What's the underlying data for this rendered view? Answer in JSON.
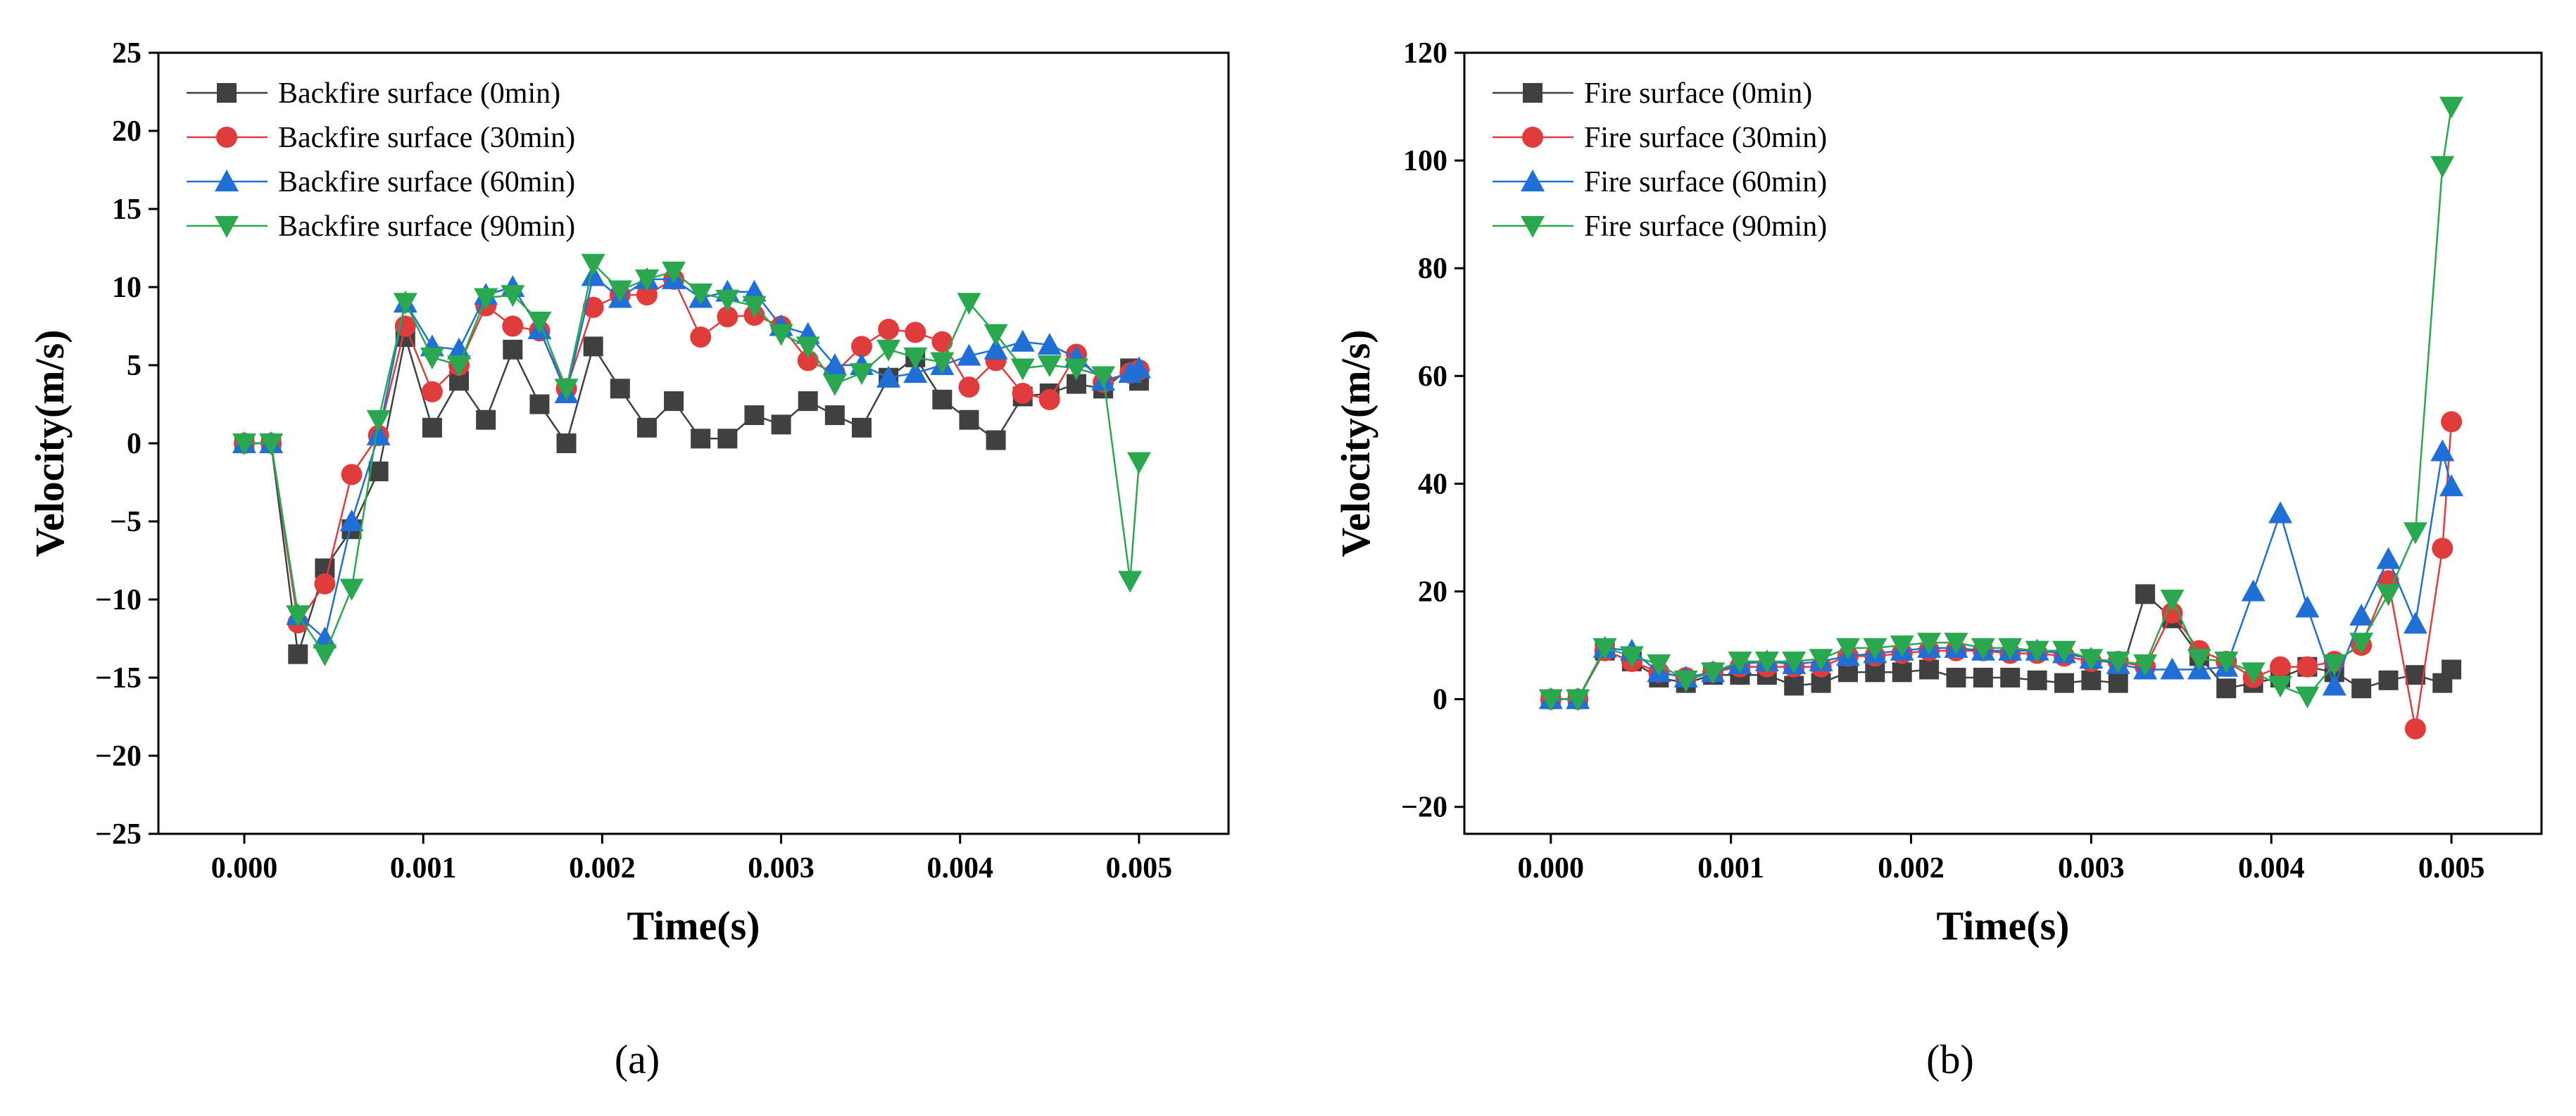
{
  "chart_data": [
    {
      "type": "line",
      "panel_label": "(a)",
      "xlabel": "Time(s)",
      "ylabel": "Velocity(m/s)",
      "xlim": [
        -0.00048,
        0.0055
      ],
      "ylim": [
        -25,
        25
      ],
      "xticks": [
        0.0,
        0.001,
        0.002,
        0.003,
        0.004,
        0.005
      ],
      "xtick_labels": [
        "0.000",
        "0.001",
        "0.002",
        "0.003",
        "0.004",
        "0.005"
      ],
      "yticks": [
        -25,
        -20,
        -15,
        -10,
        -5,
        0,
        5,
        10,
        15,
        20,
        25
      ],
      "ytick_labels": [
        "−25",
        "−20",
        "−15",
        "−10",
        "−5",
        "0",
        "5",
        "10",
        "15",
        "20",
        "25"
      ],
      "legend_position": "top-left",
      "series": [
        {
          "name": "Backfire surface (0min)",
          "color": "#404040",
          "marker": "square",
          "x": [
            0,
            0.00015,
            0.0003,
            0.00045,
            0.0006,
            0.00075,
            0.0009,
            0.00105,
            0.0012,
            0.00135,
            0.0015,
            0.00165,
            0.0018,
            0.00195,
            0.0021,
            0.00225,
            0.0024,
            0.00255,
            0.0027,
            0.00285,
            0.003,
            0.00315,
            0.0033,
            0.00345,
            0.0036,
            0.00375,
            0.0039,
            0.00405,
            0.0042,
            0.00435,
            0.0045,
            0.00465,
            0.0048,
            0.00495,
            0.005
          ],
          "y": [
            0,
            0,
            -13.5,
            -8,
            -5.5,
            -1.8,
            6.8,
            1,
            4,
            1.5,
            6,
            2.5,
            0,
            6.2,
            3.5,
            1,
            2.7,
            0.3,
            0.3,
            1.8,
            1.2,
            2.7,
            1.8,
            1,
            4.2,
            5.5,
            2.8,
            1.5,
            0.2,
            3,
            3.2,
            3.8,
            3.5,
            4.8,
            4
          ]
        },
        {
          "name": "Backfire surface (30min)",
          "color": "#e03c3c",
          "marker": "circle",
          "x": [
            0,
            0.00015,
            0.0003,
            0.00045,
            0.0006,
            0.00075,
            0.0009,
            0.00105,
            0.0012,
            0.00135,
            0.0015,
            0.00165,
            0.0018,
            0.00195,
            0.0021,
            0.00225,
            0.0024,
            0.00255,
            0.0027,
            0.00285,
            0.003,
            0.00315,
            0.0033,
            0.00345,
            0.0036,
            0.00375,
            0.0039,
            0.00405,
            0.0042,
            0.00435,
            0.0045,
            0.00465,
            0.0048,
            0.00495,
            0.005
          ],
          "y": [
            0,
            0,
            -11.5,
            -9,
            -2,
            0.5,
            7.5,
            3.3,
            5,
            8.8,
            7.5,
            7.2,
            3.5,
            8.7,
            9.5,
            9.5,
            10.5,
            6.8,
            8.1,
            8.2,
            7.5,
            5.3,
            4.5,
            6.2,
            7.3,
            7.1,
            6.5,
            3.6,
            5.3,
            3.2,
            2.8,
            5.7,
            3.9,
            4.5,
            4.7
          ]
        },
        {
          "name": "Backfire surface (60min)",
          "color": "#1f6fd6",
          "marker": "triangle-up",
          "x": [
            0,
            0.00015,
            0.0003,
            0.00045,
            0.0006,
            0.00075,
            0.0009,
            0.00105,
            0.0012,
            0.00135,
            0.0015,
            0.00165,
            0.0018,
            0.00195,
            0.0021,
            0.00225,
            0.0024,
            0.00255,
            0.0027,
            0.00285,
            0.003,
            0.00315,
            0.0033,
            0.00345,
            0.0036,
            0.00375,
            0.0039,
            0.00405,
            0.0042,
            0.00435,
            0.0045,
            0.00465,
            0.0048,
            0.00495,
            0.005
          ],
          "y": [
            0,
            0,
            -11,
            -12.5,
            -5,
            0.5,
            9,
            6.2,
            6,
            9.5,
            10,
            7.3,
            3.2,
            10.7,
            9.3,
            10.5,
            10.5,
            9.3,
            9.7,
            9.7,
            7.5,
            7,
            5,
            5,
            4.2,
            4.5,
            5,
            5.6,
            6,
            6.5,
            6.3,
            5.5,
            4,
            4.5,
            4.8
          ]
        },
        {
          "name": "Backfire surface (90min)",
          "color": "#2aa850",
          "marker": "triangle-down",
          "x": [
            0,
            0.00015,
            0.0003,
            0.00045,
            0.0006,
            0.00075,
            0.0009,
            0.00105,
            0.0012,
            0.00135,
            0.0015,
            0.00165,
            0.0018,
            0.00195,
            0.0021,
            0.00225,
            0.0024,
            0.00255,
            0.0027,
            0.00285,
            0.003,
            0.00315,
            0.0033,
            0.00345,
            0.0036,
            0.00375,
            0.0039,
            0.00405,
            0.0042,
            0.00435,
            0.0045,
            0.00465,
            0.0048,
            0.00495,
            0.005
          ],
          "y": [
            0,
            0,
            -11,
            -13.5,
            -9.3,
            1.5,
            9,
            5.5,
            5,
            9.3,
            9.5,
            7.8,
            3.5,
            11.5,
            9.8,
            10.5,
            11,
            9.6,
            9.2,
            8.8,
            7,
            6.2,
            3.8,
            4.5,
            6,
            5.5,
            5.2,
            9,
            7,
            4.8,
            5,
            4.8,
            4.3,
            -8.8,
            -1.2
          ]
        }
      ]
    },
    {
      "type": "line",
      "panel_label": "(b)",
      "xlabel": "Time(s)",
      "ylabel": "Velocity(m/s)",
      "xlim": [
        -0.00048,
        0.0055
      ],
      "ylim": [
        -25,
        120
      ],
      "xticks": [
        0.0,
        0.001,
        0.002,
        0.003,
        0.004,
        0.005
      ],
      "xtick_labels": [
        "0.000",
        "0.001",
        "0.002",
        "0.003",
        "0.004",
        "0.005"
      ],
      "yticks": [
        -20,
        0,
        20,
        40,
        60,
        80,
        100,
        120
      ],
      "ytick_labels": [
        "−20",
        "0",
        "20",
        "40",
        "60",
        "80",
        "100",
        "120"
      ],
      "legend_position": "top-left",
      "series": [
        {
          "name": "Fire surface (0min)",
          "color": "#404040",
          "marker": "square",
          "x": [
            0,
            0.00015,
            0.0003,
            0.00045,
            0.0006,
            0.00075,
            0.0009,
            0.00105,
            0.0012,
            0.00135,
            0.0015,
            0.00165,
            0.0018,
            0.00195,
            0.0021,
            0.00225,
            0.0024,
            0.00255,
            0.0027,
            0.00285,
            0.003,
            0.00315,
            0.0033,
            0.00345,
            0.0036,
            0.00375,
            0.0039,
            0.00405,
            0.0042,
            0.00435,
            0.0045,
            0.00465,
            0.0048,
            0.00495,
            0.005
          ],
          "y": [
            0,
            0,
            9,
            7,
            4,
            3,
            4.5,
            4.5,
            4.5,
            2.5,
            3,
            5,
            5,
            5,
            5.5,
            4,
            4,
            4,
            3.5,
            3,
            3.5,
            3,
            19.5,
            15,
            8,
            2,
            3,
            4,
            6,
            5,
            2,
            3.5,
            4.5,
            3,
            5.5
          ]
        },
        {
          "name": "Fire surface (30min)",
          "color": "#e03c3c",
          "marker": "circle",
          "x": [
            0,
            0.00015,
            0.0003,
            0.00045,
            0.0006,
            0.00075,
            0.0009,
            0.00105,
            0.0012,
            0.00135,
            0.0015,
            0.00165,
            0.0018,
            0.00195,
            0.0021,
            0.00225,
            0.0024,
            0.00255,
            0.0027,
            0.00285,
            0.003,
            0.00315,
            0.0033,
            0.00345,
            0.0036,
            0.00375,
            0.0039,
            0.00405,
            0.0042,
            0.00435,
            0.0045,
            0.00465,
            0.0048,
            0.00495,
            0.005
          ],
          "y": [
            0,
            0,
            9,
            7,
            5,
            4,
            5,
            6,
            6,
            6,
            6,
            8,
            8,
            8.5,
            9,
            9,
            9,
            8.5,
            8.5,
            8,
            7,
            7,
            6,
            16,
            9,
            7,
            4,
            6,
            6,
            7,
            10,
            22,
            -5.5,
            28,
            51.5
          ]
        },
        {
          "name": "Fire surface (60min)",
          "color": "#1f6fd6",
          "marker": "triangle-up",
          "x": [
            0,
            0.00015,
            0.0003,
            0.00045,
            0.0006,
            0.00075,
            0.0009,
            0.00105,
            0.0012,
            0.00135,
            0.0015,
            0.00165,
            0.0018,
            0.00195,
            0.0021,
            0.00225,
            0.0024,
            0.00255,
            0.0027,
            0.00285,
            0.003,
            0.00315,
            0.0033,
            0.00345,
            0.0036,
            0.00375,
            0.0039,
            0.00405,
            0.0042,
            0.00435,
            0.0045,
            0.00465,
            0.0048,
            0.00495,
            0.005
          ],
          "y": [
            0,
            0,
            9.5,
            9,
            5,
            4,
            5,
            6.5,
            7,
            6.5,
            7,
            8,
            8.5,
            9,
            9.5,
            9.5,
            9,
            9,
            9,
            8.5,
            7.5,
            6.5,
            5.5,
            5.5,
            5.5,
            6,
            20,
            34.5,
            17,
            2.5,
            15.5,
            26,
            14,
            46,
            39.5
          ]
        },
        {
          "name": "Fire surface (90min)",
          "color": "#2aa850",
          "marker": "triangle-down",
          "x": [
            0,
            0.00015,
            0.0003,
            0.00045,
            0.0006,
            0.00075,
            0.0009,
            0.00105,
            0.0012,
            0.00135,
            0.0015,
            0.00165,
            0.0018,
            0.00195,
            0.0021,
            0.00225,
            0.0024,
            0.00255,
            0.0027,
            0.00285,
            0.003,
            0.00315,
            0.0033,
            0.00345,
            0.0036,
            0.00375,
            0.0039,
            0.00405,
            0.0042,
            0.00435,
            0.0045,
            0.00465,
            0.0048,
            0.00495,
            0.005
          ],
          "y": [
            0,
            0,
            9.5,
            8,
            6.5,
            3.5,
            5,
            7,
            7,
            7,
            7.5,
            9.5,
            9.5,
            10,
            10.5,
            10.5,
            9.5,
            9.5,
            9,
            9,
            7.5,
            7,
            6.5,
            18.5,
            7.5,
            7,
            5,
            2.5,
            0.5,
            6.5,
            10.5,
            19.5,
            31,
            99,
            110
          ]
        }
      ]
    }
  ]
}
